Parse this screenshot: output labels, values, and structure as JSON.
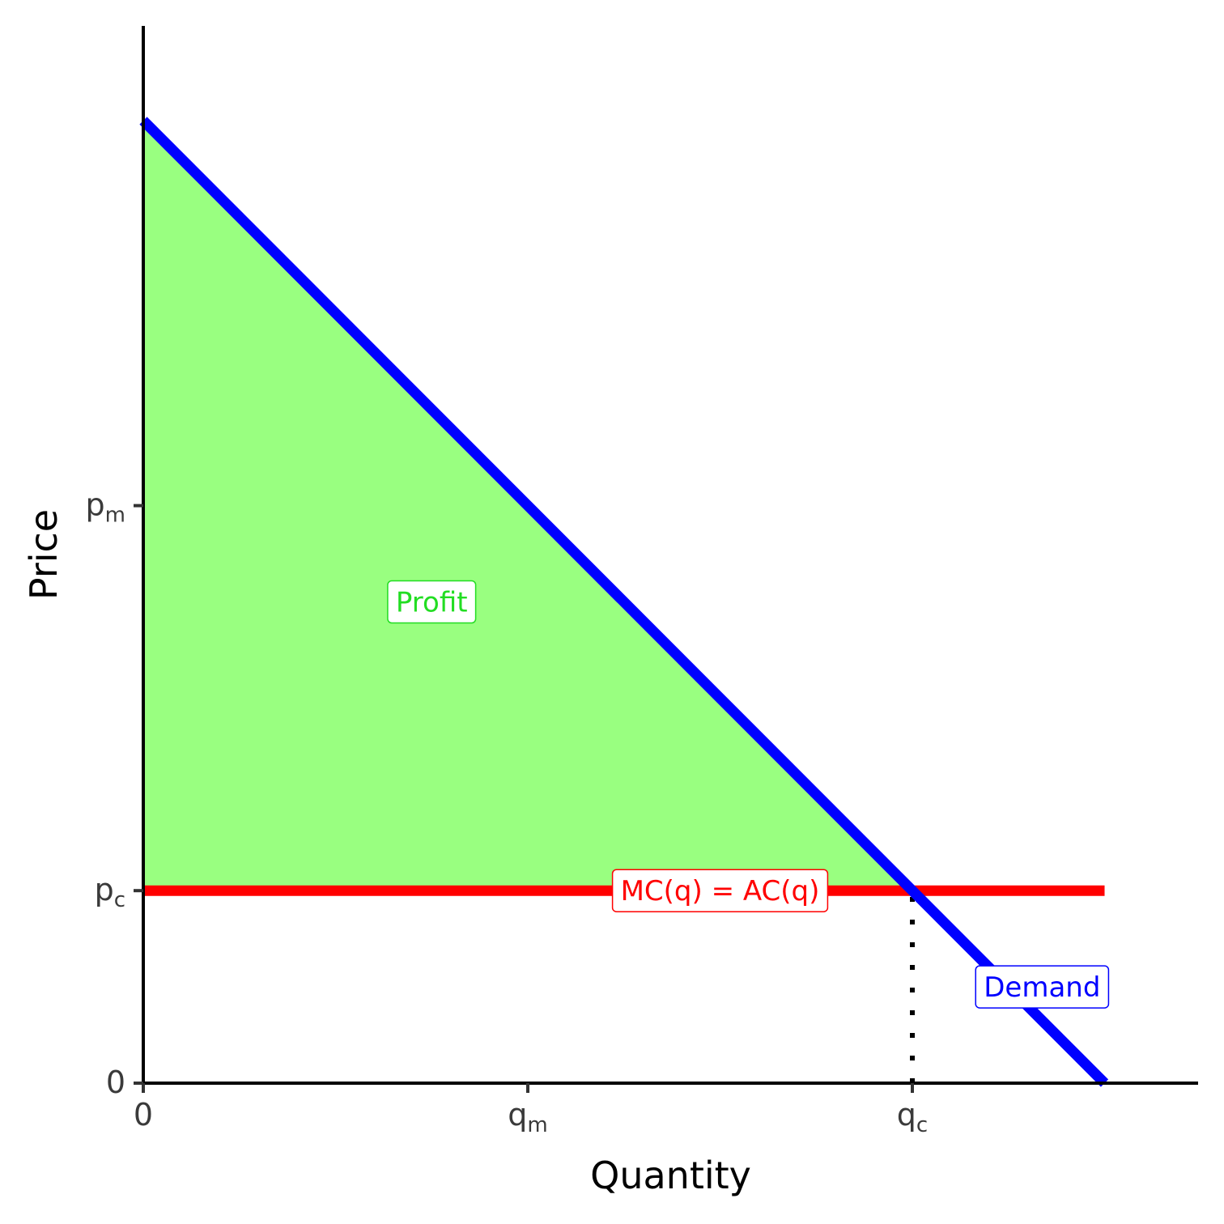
{
  "chart_data": {
    "type": "line",
    "xlabel": "Quantity",
    "ylabel": "Price",
    "xlim": [
      0,
      11
    ],
    "ylim": [
      0,
      10
    ],
    "x_ticks": [
      {
        "value": 0,
        "base": "0",
        "sub": ""
      },
      {
        "value": 4,
        "base": "q",
        "sub": "m"
      },
      {
        "value": 8,
        "base": "q",
        "sub": "c"
      }
    ],
    "y_ticks": [
      {
        "value": 0,
        "base": "0",
        "sub": ""
      },
      {
        "value": 2,
        "base": "p",
        "sub": "c"
      },
      {
        "value": 6,
        "base": "p",
        "sub": "m"
      }
    ],
    "series": [
      {
        "name": "Demand",
        "color": "#0000ff",
        "x": [
          0,
          10
        ],
        "y": [
          10,
          0
        ]
      },
      {
        "name": "MC(q) = AC(q)",
        "color": "#ff0000",
        "x": [
          0,
          10
        ],
        "y": [
          2,
          2
        ]
      }
    ],
    "areas": [
      {
        "name": "Profit",
        "color": "#99ff80",
        "x": [
          0,
          0,
          8
        ],
        "y": [
          2,
          10,
          2
        ]
      }
    ],
    "reference_lines": [
      {
        "x": [
          8,
          8
        ],
        "y": [
          0,
          2
        ],
        "style": "dotted",
        "color": "#000000"
      }
    ],
    "annotations": [
      {
        "text": "Profit",
        "x": 3,
        "y": 5,
        "color": "#22dd22"
      },
      {
        "text": "MC(q) = AC(q)",
        "x": 6,
        "y": 2,
        "color": "#ff0000"
      },
      {
        "text": "Demand",
        "x": 9.35,
        "y": 1,
        "color": "#0000ff"
      }
    ]
  }
}
